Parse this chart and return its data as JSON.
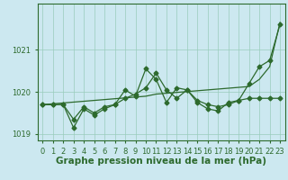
{
  "xlabel": "Graphe pression niveau de la mer (hPa)",
  "x": [
    0,
    1,
    2,
    3,
    4,
    5,
    6,
    7,
    8,
    9,
    10,
    11,
    12,
    13,
    14,
    15,
    16,
    17,
    18,
    19,
    20,
    21,
    22,
    23
  ],
  "line1": [
    1019.7,
    1019.7,
    1019.7,
    1019.35,
    1019.65,
    1019.5,
    1019.65,
    1019.7,
    1019.85,
    1019.95,
    1020.1,
    1020.45,
    1020.05,
    1019.85,
    1020.05,
    1019.8,
    1019.7,
    1019.65,
    1019.7,
    1019.8,
    1019.85,
    1019.85,
    1019.85,
    1019.85
  ],
  "line2": [
    1019.7,
    1019.7,
    1019.7,
    1019.15,
    1019.6,
    1019.45,
    1019.6,
    1019.7,
    1020.05,
    1019.9,
    1020.55,
    1020.3,
    1019.75,
    1020.1,
    1020.05,
    1019.75,
    1019.6,
    1019.55,
    1019.75,
    1019.8,
    1020.2,
    1020.6,
    1020.75,
    1021.6
  ],
  "line3": [
    1019.7,
    1019.72,
    1019.74,
    1019.76,
    1019.78,
    1019.8,
    1019.82,
    1019.84,
    1019.86,
    1019.88,
    1019.9,
    1019.95,
    1019.97,
    1019.99,
    1020.01,
    1020.03,
    1020.05,
    1020.07,
    1020.09,
    1020.11,
    1020.13,
    1020.3,
    1020.6,
    1021.65
  ],
  "line_color": "#2d6a2d",
  "bg_color": "#cce8f0",
  "grid_color": "#99ccbb",
  "ylim": [
    1018.85,
    1022.1
  ],
  "yticks": [
    1019,
    1020,
    1021
  ],
  "marker": "D",
  "marker_size": 2.5,
  "linewidth": 0.9,
  "xlabel_fontsize": 7.5,
  "tick_fontsize": 6.0
}
